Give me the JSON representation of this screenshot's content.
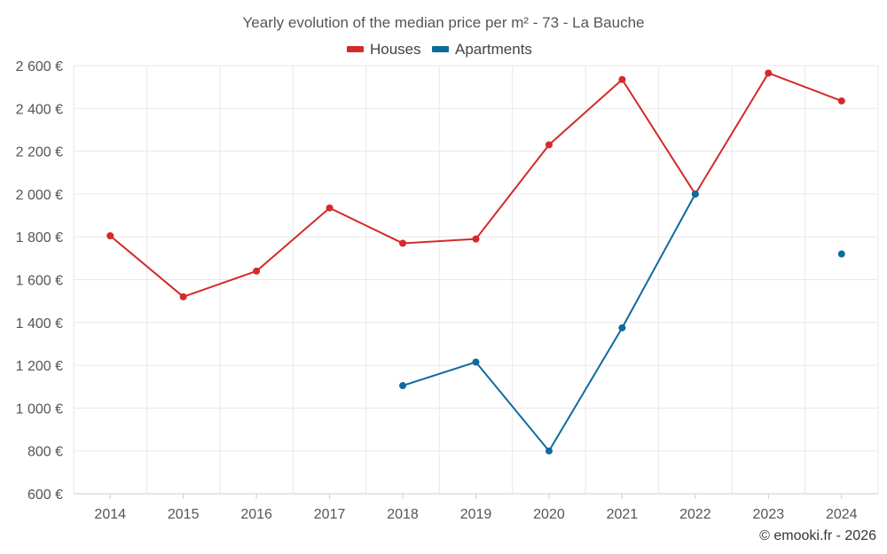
{
  "chart_data": {
    "type": "line",
    "title": "Yearly evolution of the median price per m² - 73 - La Bauche",
    "xlabel": "",
    "ylabel": "",
    "categories": [
      "2014",
      "2015",
      "2016",
      "2017",
      "2018",
      "2019",
      "2020",
      "2021",
      "2022",
      "2023",
      "2024"
    ],
    "ylim": [
      600,
      2600
    ],
    "y_ticks": [
      600,
      800,
      1000,
      1200,
      1400,
      1600,
      1800,
      2000,
      2200,
      2400,
      2600
    ],
    "y_tick_labels": [
      "600 €",
      "800 €",
      "1 000 €",
      "1 200 €",
      "1 400 €",
      "1 600 €",
      "1 800 €",
      "2 000 €",
      "2 200 €",
      "2 400 €",
      "2 600 €"
    ],
    "grid": true,
    "legend_position": "top-center",
    "series": [
      {
        "name": "Houses",
        "color": "#d42a2a",
        "values": [
          1805,
          1520,
          1640,
          1935,
          1770,
          1790,
          2230,
          2535,
          2000,
          2565,
          2435
        ]
      },
      {
        "name": "Apartments",
        "color": "#0e6a9e",
        "values": [
          null,
          null,
          null,
          null,
          1105,
          1215,
          800,
          1375,
          2000,
          null,
          1720
        ]
      }
    ]
  },
  "credit": "© emooki.fr - 2026"
}
